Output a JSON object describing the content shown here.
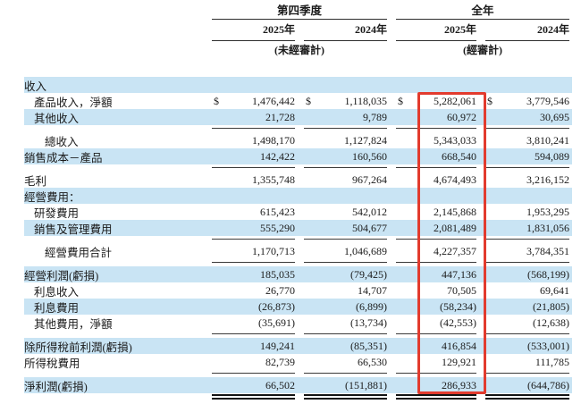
{
  "currency": "$",
  "colors": {
    "stripe": "#c9e4f4",
    "highlight_box": "#e23b2e",
    "rule": "#3a3a3a",
    "text": "#1b1b1b"
  },
  "header": {
    "groups": [
      {
        "title": "第四季度",
        "years": [
          "2025年",
          "2024年"
        ],
        "note": "(未經審計)"
      },
      {
        "title": "全年",
        "years": [
          "2025年",
          "2024年"
        ],
        "note": "(經審計)"
      }
    ]
  },
  "rows": [
    {
      "label": "收入",
      "indent": 0,
      "stripe": true,
      "dollar": false,
      "values": null,
      "rule_below": null
    },
    {
      "label": "產品收入，淨額",
      "indent": 1,
      "stripe": false,
      "dollar": true,
      "values": [
        "1,476,442",
        "1,118,035",
        "5,282,061",
        "3,779,546"
      ],
      "rule_below": null
    },
    {
      "label": "其他收入",
      "indent": 1,
      "stripe": true,
      "dollar": false,
      "values": [
        "21,728",
        "9,789",
        "60,972",
        "30,695"
      ],
      "rule_below": "single"
    },
    {
      "label": "總收入",
      "indent": 2,
      "stripe": false,
      "dollar": false,
      "values": [
        "1,498,170",
        "1,127,824",
        "5,343,033",
        "3,810,241"
      ],
      "rule_below": null
    },
    {
      "label": "銷售成本－產品",
      "indent": 0,
      "stripe": true,
      "dollar": false,
      "values": [
        "142,422",
        "160,560",
        "668,540",
        "594,089"
      ],
      "rule_below": "single"
    },
    {
      "label": "毛利",
      "indent": 0,
      "stripe": false,
      "dollar": false,
      "values": [
        "1,355,748",
        "967,264",
        "4,674,493",
        "3,216,152"
      ],
      "rule_below": null
    },
    {
      "label": "經營費用：",
      "indent": 0,
      "stripe": true,
      "dollar": false,
      "values": null,
      "rule_below": null
    },
    {
      "label": "研發費用",
      "indent": 1,
      "stripe": false,
      "dollar": false,
      "values": [
        "615,423",
        "542,012",
        "2,145,868",
        "1,953,295"
      ],
      "rule_below": null
    },
    {
      "label": "銷售及管理費用",
      "indent": 1,
      "stripe": true,
      "dollar": false,
      "values": [
        "555,290",
        "504,677",
        "2,081,489",
        "1,831,056"
      ],
      "rule_below": "single"
    },
    {
      "label": "經營費用合計",
      "indent": 2,
      "stripe": false,
      "dollar": false,
      "values": [
        "1,170,713",
        "1,046,689",
        "4,227,357",
        "3,784,351"
      ],
      "rule_below": "single"
    },
    {
      "label": "經營利潤(虧損)",
      "indent": 0,
      "stripe": true,
      "dollar": false,
      "values": [
        "185,035",
        "(79,425)",
        "447,136",
        "(568,199)"
      ],
      "rule_below": null
    },
    {
      "label": "利息收入",
      "indent": 1,
      "stripe": false,
      "dollar": false,
      "values": [
        "26,770",
        "14,707",
        "70,505",
        "69,641"
      ],
      "rule_below": null
    },
    {
      "label": "利息費用",
      "indent": 1,
      "stripe": true,
      "dollar": false,
      "values": [
        "(26,873)",
        "(6,899)",
        "(58,234)",
        "(21,805)"
      ],
      "rule_below": null
    },
    {
      "label": "其他費用，淨額",
      "indent": 1,
      "stripe": false,
      "dollar": false,
      "values": [
        "(35,691)",
        "(13,734)",
        "(42,553)",
        "(12,638)"
      ],
      "rule_below": "single"
    },
    {
      "label": "除所得稅前利潤(虧損)",
      "indent": 0,
      "stripe": true,
      "dollar": false,
      "values": [
        "149,241",
        "(85,351)",
        "416,854",
        "(533,001)"
      ],
      "rule_below": null
    },
    {
      "label": "所得稅費用",
      "indent": 0,
      "stripe": false,
      "dollar": false,
      "values": [
        "82,739",
        "66,530",
        "129,921",
        "111,785"
      ],
      "rule_below": "single"
    },
    {
      "label": "淨利潤(虧損)",
      "indent": 0,
      "stripe": true,
      "dollar": false,
      "values": [
        "66,502",
        "(151,881)",
        "286,933",
        "(644,786)"
      ],
      "rule_below": "double"
    }
  ]
}
